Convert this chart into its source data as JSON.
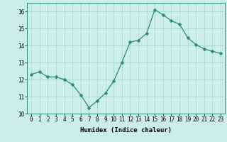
{
  "x": [
    0,
    1,
    2,
    3,
    4,
    5,
    6,
    7,
    8,
    9,
    10,
    11,
    12,
    13,
    14,
    15,
    16,
    17,
    18,
    19,
    20,
    21,
    22,
    23
  ],
  "y": [
    12.3,
    12.45,
    12.15,
    12.15,
    12.0,
    11.7,
    11.1,
    10.35,
    10.75,
    11.2,
    11.9,
    13.0,
    14.2,
    14.3,
    14.7,
    16.1,
    15.8,
    15.45,
    15.25,
    14.45,
    14.05,
    13.8,
    13.65,
    13.55
  ],
  "line_color": "#2e8b72",
  "marker": "D",
  "marker_size": 2.5,
  "bg_color": "#cceee8",
  "grid_color": "#aad8d0",
  "xlabel": "Humidex (Indice chaleur)",
  "ylim": [
    10,
    16.5
  ],
  "xlim": [
    -0.5,
    23.5
  ],
  "yticks": [
    10,
    11,
    12,
    13,
    14,
    15,
    16
  ],
  "xticks": [
    0,
    1,
    2,
    3,
    4,
    5,
    6,
    7,
    8,
    9,
    10,
    11,
    12,
    13,
    14,
    15,
    16,
    17,
    18,
    19,
    20,
    21,
    22,
    23
  ],
  "xtick_labels": [
    "0",
    "1",
    "2",
    "3",
    "4",
    "5",
    "6",
    "7",
    "8",
    "9",
    "10",
    "11",
    "12",
    "13",
    "14",
    "15",
    "16",
    "17",
    "18",
    "19",
    "20",
    "21",
    "22",
    "23"
  ],
  "label_fontsize": 6.5,
  "tick_fontsize": 5.5
}
